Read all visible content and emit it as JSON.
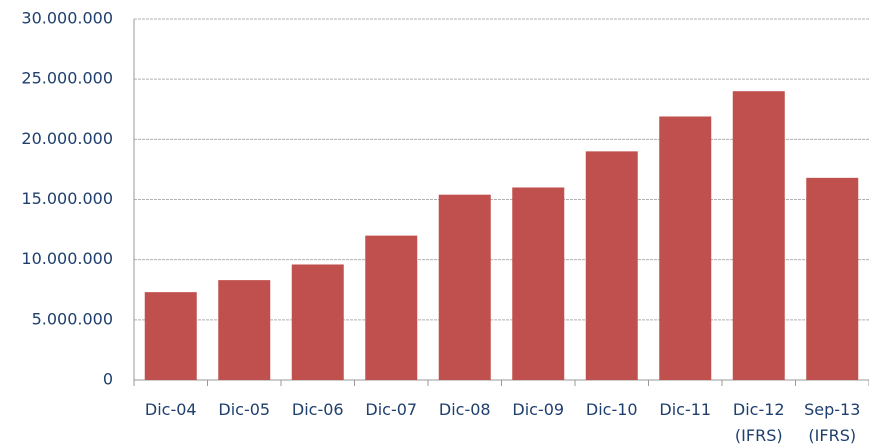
{
  "chart_data": {
    "type": "bar",
    "categories": [
      "Dic-04",
      "Dic-05",
      "Dic-06",
      "Dic-07",
      "Dic-08",
      "Dic-09",
      "Dic-10",
      "Dic-11",
      "Dic-12 (IFRS)",
      "Sep-13 (IFRS)"
    ],
    "values": [
      7300000,
      8300000,
      9600000,
      12000000,
      15400000,
      16000000,
      19000000,
      21900000,
      24000000,
      16800000
    ],
    "color": "#c0504d",
    "ylim": [
      0,
      30000000
    ],
    "yticks": [
      {
        "value": 0,
        "label": "0"
      },
      {
        "value": 5000000,
        "label": "5.000.000"
      },
      {
        "value": 10000000,
        "label": "10.000.000"
      },
      {
        "value": 15000000,
        "label": "15.000.000"
      },
      {
        "value": 20000000,
        "label": "20.000.000"
      },
      {
        "value": 25000000,
        "label": "25.000.000"
      },
      {
        "value": 30000000,
        "label": "30.000.000"
      }
    ],
    "grid": true
  }
}
